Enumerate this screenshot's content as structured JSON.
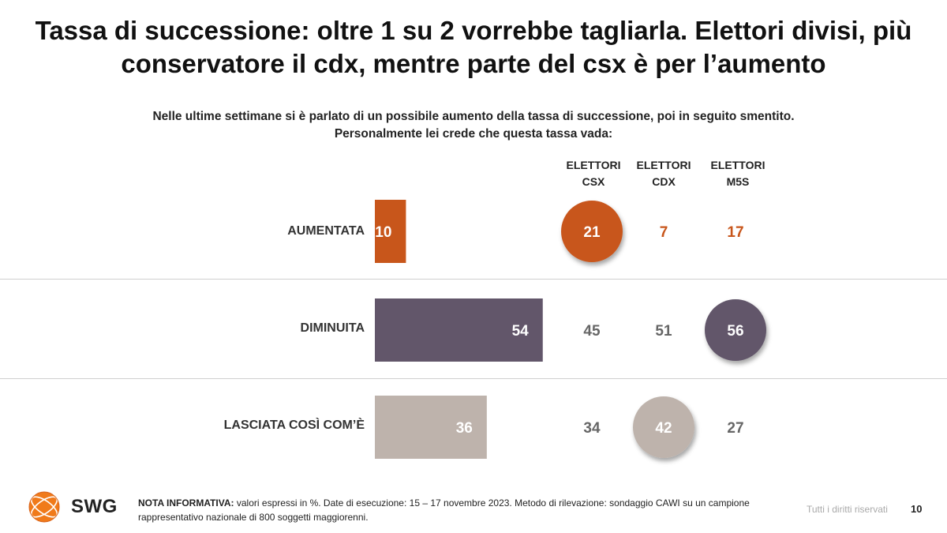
{
  "title": {
    "line1": "Tassa di successione: oltre 1 su 2 vorrebbe tagliarla. Elettori divisi, più",
    "line2": "conservatore il cdx, mentre parte del csx è per l’aumento"
  },
  "question": {
    "line1": "Nelle ultime settimane si è parlato di un possibile aumento della tassa di successione, poi in seguito smentito.",
    "line2": "Personalmente lei crede che questa tassa vada:"
  },
  "columns": [
    {
      "line1": "ELETTORI",
      "line2": "CSX"
    },
    {
      "line1": "ELETTORI",
      "line2": "CDX"
    },
    {
      "line1": "ELETTORI",
      "line2": "M5S"
    }
  ],
  "chart_data": {
    "type": "bar",
    "orientation": "horizontal",
    "unit": "%",
    "categories": [
      "AUMENTATA",
      "DIMINUITA",
      "LASCIATA COSÌ COM’È"
    ],
    "values": [
      10,
      54,
      36
    ],
    "bar_colors": [
      "#c8561b",
      "#62566a",
      "#beb3ac"
    ],
    "xlim": [
      0,
      100
    ],
    "breakdown": {
      "columns": [
        "ELETTORI CSX",
        "ELETTORI CDX",
        "ELETTORI M5S"
      ],
      "values": [
        [
          21,
          7,
          17
        ],
        [
          45,
          51,
          56
        ],
        [
          34,
          42,
          27
        ]
      ],
      "highlighted": [
        [
          true,
          false,
          false
        ],
        [
          false,
          false,
          true
        ],
        [
          false,
          true,
          false
        ]
      ]
    }
  },
  "footer": {
    "logo_text": "SWG",
    "note_label": "NOTA INFORMATIVA:",
    "note_text": " valori espressi in %. Date di esecuzione: 15 – 17 novembre 2023. Metodo di rilevazione: sondaggio CAWI su un campione rappresentativo nazionale di 800 soggetti maggiorenni.",
    "rights": "Tutti i diritti riservati",
    "page": "10"
  },
  "colors": {
    "accent_orange": "#c8561b",
    "purple": "#62566a",
    "beige": "#beb3ac",
    "grey_text": "#666666"
  }
}
